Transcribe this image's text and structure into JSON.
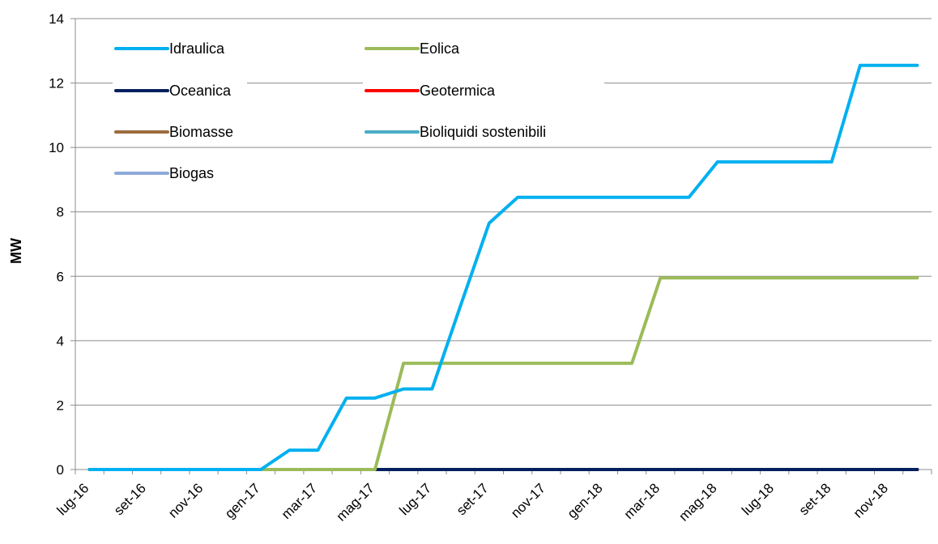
{
  "chart_data": {
    "type": "line",
    "ylabel": "MW",
    "xlabel": "",
    "ylim": [
      0,
      14
    ],
    "yticks": [
      0,
      2,
      4,
      6,
      8,
      10,
      12,
      14
    ],
    "grid": "horizontal",
    "legend_position": "top-left",
    "x": [
      "lug-16",
      "ago-16",
      "set-16",
      "ott-16",
      "nov-16",
      "dic-16",
      "gen-17",
      "feb-17",
      "mar-17",
      "apr-17",
      "mag-17",
      "giu-17",
      "lug-17",
      "ago-17",
      "set-17",
      "ott-17",
      "nov-17",
      "dic-17",
      "gen-18",
      "feb-18",
      "mar-18",
      "apr-18",
      "mag-18",
      "giu-18",
      "lug-18",
      "ago-18",
      "set-18",
      "ott-18",
      "nov-18",
      "dic-18"
    ],
    "xticks": [
      "lug-16",
      "set-16",
      "nov-16",
      "gen-17",
      "mar-17",
      "mag-17",
      "lug-17",
      "set-17",
      "nov-17",
      "gen-18",
      "mar-18",
      "mag-18",
      "lug-18",
      "set-18",
      "nov-18"
    ],
    "series": [
      {
        "name": "Idraulica",
        "color": "#00B0F0",
        "values": [
          0,
          0,
          0,
          0,
          0,
          0,
          0,
          0.6,
          0.6,
          2.22,
          2.22,
          2.5,
          2.5,
          5.1,
          7.65,
          8.45,
          8.45,
          8.45,
          8.45,
          8.45,
          8.45,
          8.45,
          9.55,
          9.55,
          9.55,
          9.55,
          9.55,
          12.55,
          12.55,
          12.55
        ]
      },
      {
        "name": "Eolica",
        "color": "#9BBB59",
        "values": [
          0,
          0,
          0,
          0,
          0,
          0,
          0,
          0,
          0,
          0,
          0,
          3.3,
          3.3,
          3.3,
          3.3,
          3.3,
          3.3,
          3.3,
          3.3,
          3.3,
          5.95,
          5.95,
          5.95,
          5.95,
          5.95,
          5.95,
          5.95,
          5.95,
          5.95,
          5.95
        ]
      },
      {
        "name": "Oceanica",
        "color": "#002060",
        "values": [
          0,
          0,
          0,
          0,
          0,
          0,
          0,
          0,
          0,
          0,
          0,
          0,
          0,
          0,
          0,
          0,
          0,
          0,
          0,
          0,
          0,
          0,
          0,
          0,
          0,
          0,
          0,
          0,
          0,
          0
        ]
      },
      {
        "name": "Geotermica",
        "color": "#FF0000",
        "values": [
          0,
          0,
          0,
          0,
          0,
          0,
          0,
          0,
          0,
          0,
          0,
          0,
          0,
          0,
          0,
          0,
          0,
          0,
          0,
          0,
          0,
          0,
          0,
          0,
          0,
          0,
          0,
          0,
          0,
          0
        ]
      },
      {
        "name": "Biomasse",
        "color": "#9C6B3E",
        "values": [
          0,
          0,
          0,
          0,
          0,
          0,
          0,
          0,
          0,
          0,
          0,
          0,
          0,
          0,
          0,
          0,
          0,
          0,
          0,
          0,
          0,
          0,
          0,
          0,
          0,
          0,
          0,
          0,
          0,
          0
        ]
      },
      {
        "name": "Bioliquidi sostenibili",
        "color": "#4BACC6",
        "values": [
          0,
          0,
          0,
          0,
          0,
          0,
          0,
          0,
          0,
          0,
          0,
          0,
          0,
          0,
          0,
          0,
          0,
          0,
          0,
          0,
          0,
          0,
          0,
          0,
          0,
          0,
          0,
          0,
          0,
          0
        ]
      },
      {
        "name": "Biogas",
        "color": "#8EA9DB",
        "values": [
          0,
          0,
          0,
          0,
          0,
          0,
          0,
          0,
          0,
          0,
          0,
          0,
          0,
          0,
          0,
          0,
          0,
          0,
          0,
          0,
          0,
          0,
          0,
          0,
          0,
          0,
          0,
          0,
          0,
          0
        ]
      }
    ]
  }
}
